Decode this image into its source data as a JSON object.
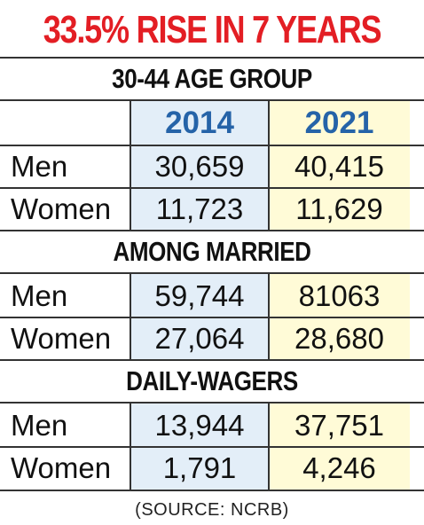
{
  "title": "33.5% RISE IN 7 YEARS",
  "colors": {
    "title": "#e31e24",
    "year_header": "#2563a8",
    "col_2014_bg": "#e3eef8",
    "col_2021_bg": "#fffbd7"
  },
  "columns": [
    "2014",
    "2021"
  ],
  "sections": [
    {
      "title": "30-44 AGE GROUP",
      "rows": [
        {
          "label": "Men",
          "v2014": "30,659",
          "v2021": "40,415"
        },
        {
          "label": "Women",
          "v2014": "11,723",
          "v2021": "11,629"
        }
      ]
    },
    {
      "title": "AMONG MARRIED",
      "rows": [
        {
          "label": "Men",
          "v2014": "59,744",
          "v2021": "81063"
        },
        {
          "label": "Women",
          "v2014": "27,064",
          "v2021": "28,680"
        }
      ]
    },
    {
      "title": "DAILY-WAGERS",
      "rows": [
        {
          "label": "Men",
          "v2014": "13,944",
          "v2021": "37,751"
        },
        {
          "label": "Women",
          "v2014": "1,791",
          "v2021": "4,246"
        }
      ]
    }
  ],
  "source": "(SOURCE: NCRB)",
  "chart_data": {
    "type": "table",
    "title": "33.5% RISE IN 7 YEARS",
    "columns": [
      "2014",
      "2021"
    ],
    "groups": [
      {
        "name": "30-44 AGE GROUP",
        "rows": [
          {
            "label": "Men",
            "values": [
              30659,
              40415
            ]
          },
          {
            "label": "Women",
            "values": [
              11723,
              11629
            ]
          }
        ]
      },
      {
        "name": "AMONG MARRIED",
        "rows": [
          {
            "label": "Men",
            "values": [
              59744,
              81063
            ]
          },
          {
            "label": "Women",
            "values": [
              27064,
              28680
            ]
          }
        ]
      },
      {
        "name": "DAILY-WAGERS",
        "rows": [
          {
            "label": "Men",
            "values": [
              13944,
              37751
            ]
          },
          {
            "label": "Women",
            "values": [
              1791,
              4246
            ]
          }
        ]
      }
    ],
    "source": "(SOURCE: NCRB)"
  }
}
